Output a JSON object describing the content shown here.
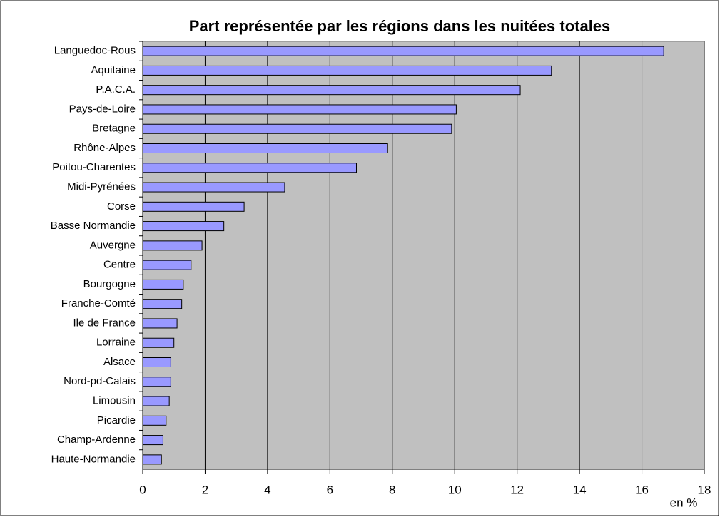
{
  "chart_data": {
    "type": "bar",
    "orientation": "horizontal",
    "title": "Part représentée par les régions dans les nuitées totales",
    "x_label": "en %",
    "categories": [
      "Languedoc-Rous",
      "Aquitaine",
      "P.A.C.A.",
      "Pays-de-Loire",
      "Bretagne",
      "Rhône-Alpes",
      "Poitou-Charentes",
      "Midi-Pyrénées",
      "Corse",
      "Basse Normandie",
      "Auvergne",
      "Centre",
      "Bourgogne",
      "Franche-Comté",
      "Ile de France",
      "Lorraine",
      "Alsace",
      "Nord-pd-Calais",
      "Limousin",
      "Picardie",
      "Champ-Ardenne",
      "Haute-Normandie"
    ],
    "values": [
      16.7,
      13.1,
      12.1,
      10.05,
      9.9,
      7.85,
      6.85,
      4.55,
      3.25,
      2.6,
      1.9,
      1.55,
      1.3,
      1.25,
      1.1,
      1.0,
      0.9,
      0.9,
      0.85,
      0.75,
      0.65,
      0.6
    ],
    "color": "#9999ff",
    "xlim": [
      0,
      18
    ],
    "xticks": [
      0,
      2,
      4,
      6,
      8,
      10,
      12,
      14,
      16,
      18
    ],
    "grid": true
  }
}
